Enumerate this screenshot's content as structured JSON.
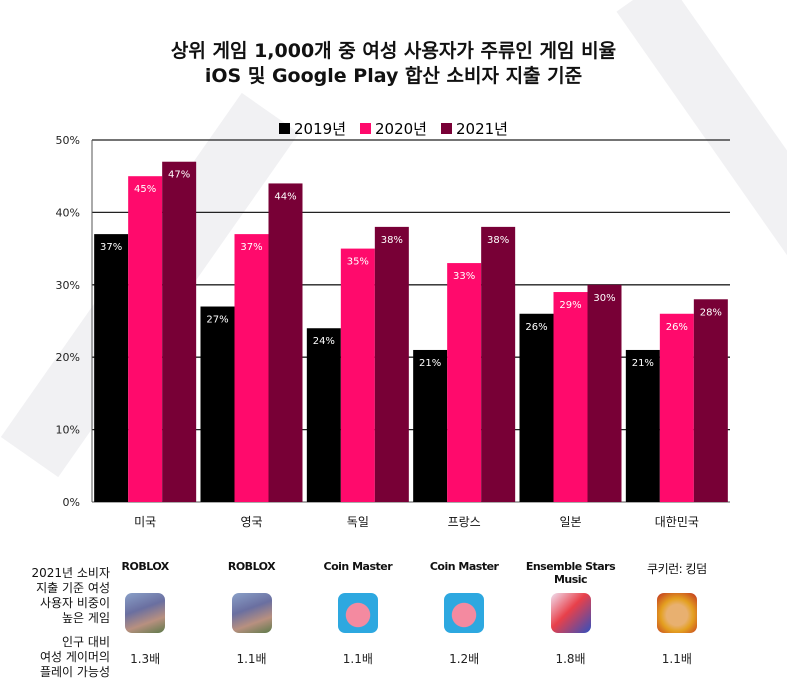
{
  "title_line1": "상위 게임 1,000개 중 여성 사용자가 주류인 게임 비율",
  "title_line2": "iOS 및 Google Play 합산 소비자 지출 기준",
  "chart_data": {
    "type": "bar",
    "categories": [
      "미국",
      "영국",
      "독일",
      "프랑스",
      "일본",
      "대한민국"
    ],
    "series": [
      {
        "name": "2019년",
        "color": "#000000",
        "values": [
          37,
          27,
          24,
          21,
          26,
          21
        ]
      },
      {
        "name": "2020년",
        "color": "#ff0a6c",
        "values": [
          45,
          37,
          35,
          33,
          29,
          26
        ]
      },
      {
        "name": "2021년",
        "color": "#780036",
        "values": [
          47,
          44,
          38,
          38,
          30,
          28
        ]
      }
    ],
    "data_labels": [
      [
        "37%",
        "27%",
        "24%",
        "21%",
        "26%",
        "21%"
      ],
      [
        "45%",
        "37%",
        "35%",
        "33%",
        "29%",
        "26%"
      ],
      [
        "47%",
        "44%",
        "38%",
        "38%",
        "30%",
        "28%"
      ]
    ],
    "yticks": [
      "0%",
      "10%",
      "20%",
      "30%",
      "40%",
      "50%"
    ],
    "ylim": [
      0,
      50
    ],
    "grid": true,
    "legend": "top-center",
    "unit": "%"
  },
  "table": {
    "row1_label": "2021년 소비자\n지출 기준 여성\n사용자 비중이\n높은 게임",
    "row2_label": "인구 대비\n여성 게이머의\n플레이 가능성",
    "games": [
      {
        "name": "ROBLOX",
        "icon": "roblox-icon",
        "multiplier": "1.3배"
      },
      {
        "name": "ROBLOX",
        "icon": "roblox-icon",
        "multiplier": "1.1배"
      },
      {
        "name": "Coin Master",
        "icon": "coin-master-icon",
        "multiplier": "1.1배"
      },
      {
        "name": "Coin Master",
        "icon": "coin-master-icon",
        "multiplier": "1.2배"
      },
      {
        "name": "Ensemble Stars Music",
        "icon": "ensemble-stars-music-icon",
        "multiplier": "1.8배"
      },
      {
        "name": "쿠키런: 킹덤",
        "icon": "cookie-run-kingdom-icon",
        "multiplier": "1.1배"
      }
    ]
  }
}
